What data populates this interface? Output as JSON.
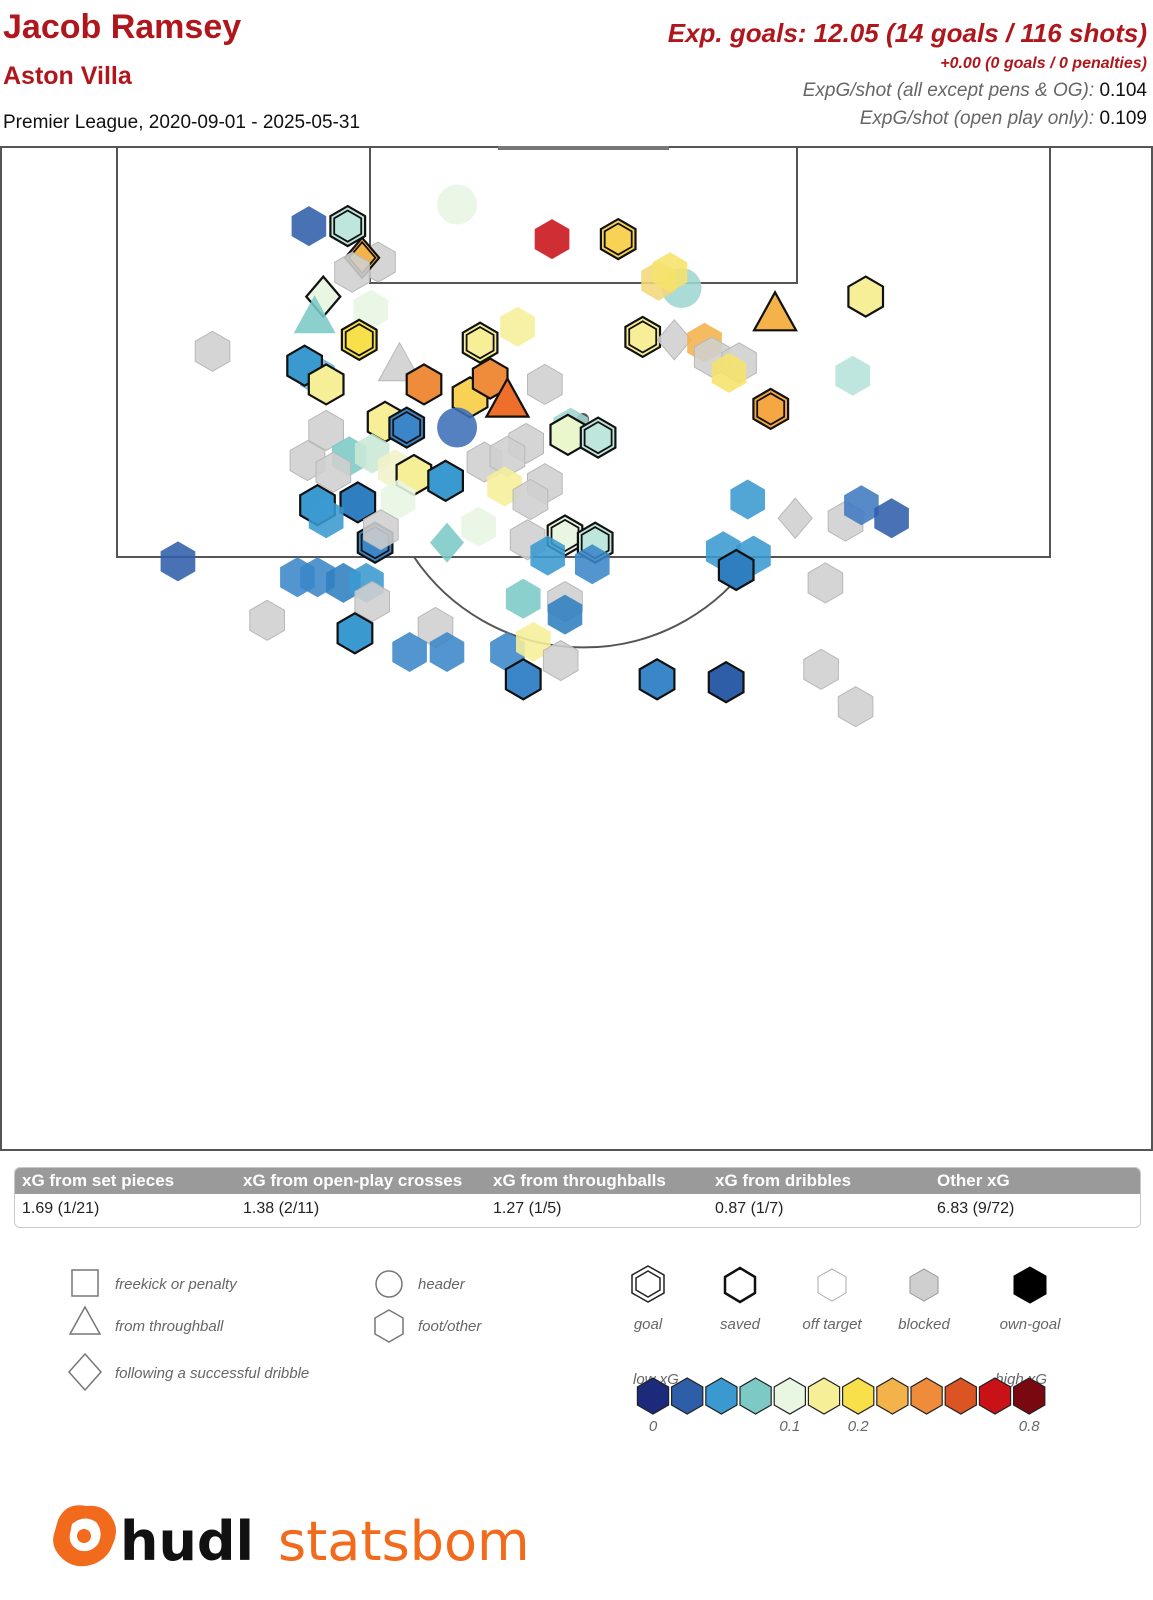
{
  "header": {
    "player": "Jacob Ramsey",
    "team": "Aston Villa",
    "competition": "Premier League, 2020-09-01 - 2025-05-31",
    "xg_main": "Exp. goals: 12.05 (14 goals / 116 shots)",
    "xg_penalties": "+0.00 (0 goals / 0 penalties)",
    "xg_per_shot_label": "ExpG/shot (all except pens & OG):",
    "xg_per_shot_value": "0.104",
    "xg_per_shot_open_label": "ExpG/shot (open play only):",
    "xg_per_shot_open_value": "0.109"
  },
  "categories": [
    {
      "label": "xG from set pieces",
      "value": "1.69 (1/21)"
    },
    {
      "label": "xG from open-play crosses",
      "value": "1.38 (2/11)"
    },
    {
      "label": "xG from throughballs",
      "value": "1.27 (1/5)"
    },
    {
      "label": "xG from dribbles",
      "value": "0.87 (1/7)"
    },
    {
      "label": "Other xG",
      "value": "6.83 (9/72)"
    }
  ],
  "legend": {
    "shapes": [
      {
        "shape": "square",
        "label": "freekick or penalty"
      },
      {
        "shape": "triangle",
        "label": "from throughball"
      },
      {
        "shape": "diamond",
        "label": "following a successful dribble"
      },
      {
        "shape": "circle",
        "label": "header"
      },
      {
        "shape": "hexagon",
        "label": "foot/other"
      }
    ],
    "outcomes": [
      {
        "outcome": "goal",
        "label": "goal"
      },
      {
        "outcome": "saved",
        "label": "saved"
      },
      {
        "outcome": "off",
        "label": "off target"
      },
      {
        "outcome": "blocked",
        "label": "blocked"
      },
      {
        "outcome": "own",
        "label": "own-goal"
      }
    ],
    "scale_low": "low xG",
    "scale_high": "high xG",
    "scale_colors": [
      "#1b2a7a",
      "#2f5ea8",
      "#3a9ad0",
      "#7cc9c6",
      "#e8f6e2",
      "#f6ef98",
      "#f7e04a",
      "#f4b24a",
      "#ee8c3c",
      "#db5424",
      "#c81218",
      "#7a0810"
    ],
    "scale_ticks": [
      {
        "index": 0,
        "text": "0"
      },
      {
        "index": 4,
        "text": "0.1"
      },
      {
        "index": 6,
        "text": "0.2"
      },
      {
        "index": 11,
        "text": "0.8"
      }
    ]
  },
  "colors": {
    "title_red": "#b0171c",
    "blocked_grey": "#cfcfcf",
    "pitch_line": "#555555"
  },
  "logo": {
    "part1": "hudl",
    "part2": "statsbomb"
  },
  "chart_data": {
    "type": "scatter",
    "title": "Jacob Ramsey",
    "xlabel": "",
    "ylabel": "",
    "x_units": "yards from left touchline (0-80)",
    "y_units": "yards from goal line",
    "ylim": [
      0,
      60
    ],
    "points": [
      {
        "x": 21.4,
        "y": 5.5,
        "s": "hex",
        "o": "off",
        "c": "#2f5ea8"
      },
      {
        "x": 24.1,
        "y": 5.5,
        "s": "hex",
        "o": "goal",
        "c": "#bfe6dc"
      },
      {
        "x": 31.7,
        "y": 4.0,
        "s": "circle",
        "o": "off",
        "c": "#e8f6e2"
      },
      {
        "x": 38.3,
        "y": 6.4,
        "s": "hex",
        "o": "off",
        "c": "#c81218"
      },
      {
        "x": 42.9,
        "y": 6.4,
        "s": "hex",
        "o": "goal",
        "c": "#f7d255"
      },
      {
        "x": 26.2,
        "y": 8.0,
        "s": "hex",
        "o": "blocked",
        "c": "#cfcfcf"
      },
      {
        "x": 25.1,
        "y": 7.7,
        "s": "diamond",
        "o": "goal",
        "c": "#f4b24a"
      },
      {
        "x": 24.4,
        "y": 8.7,
        "s": "hex",
        "o": "blocked",
        "c": "#cfcfcf"
      },
      {
        "x": 47.3,
        "y": 9.8,
        "s": "circle",
        "o": "off",
        "c": "#9fd6d0"
      },
      {
        "x": 45.7,
        "y": 9.3,
        "s": "hex",
        "o": "off",
        "c": "#f4d77a"
      },
      {
        "x": 46.5,
        "y": 8.7,
        "s": "hex",
        "o": "off",
        "c": "#f6e36a"
      },
      {
        "x": 53.8,
        "y": 11.7,
        "s": "tri",
        "o": "saved",
        "c": "#f4b24a"
      },
      {
        "x": 60.1,
        "y": 10.4,
        "s": "hex",
        "o": "saved",
        "c": "#f6ef98"
      },
      {
        "x": 22.4,
        "y": 10.4,
        "s": "diamond",
        "o": "saved",
        "c": "#e8f6e2"
      },
      {
        "x": 25.7,
        "y": 11.3,
        "s": "hex",
        "o": "off",
        "c": "#e8f6e2"
      },
      {
        "x": 21.8,
        "y": 11.9,
        "s": "tri",
        "o": "off",
        "c": "#7cc9c6"
      },
      {
        "x": 35.9,
        "y": 12.5,
        "s": "hex",
        "o": "off",
        "c": "#f6ef98"
      },
      {
        "x": 14.7,
        "y": 14.2,
        "s": "hex",
        "o": "blocked",
        "c": "#cfcfcf"
      },
      {
        "x": 24.9,
        "y": 13.4,
        "s": "hex",
        "o": "goal",
        "c": "#f7e04a"
      },
      {
        "x": 33.3,
        "y": 13.6,
        "s": "hex",
        "o": "goal",
        "c": "#f6ef98"
      },
      {
        "x": 44.6,
        "y": 13.2,
        "s": "hex",
        "o": "goal",
        "c": "#f6ef98"
      },
      {
        "x": 46.8,
        "y": 13.4,
        "s": "diamond",
        "o": "blocked",
        "c": "#cfcfcf"
      },
      {
        "x": 48.9,
        "y": 13.6,
        "s": "hex",
        "o": "off",
        "c": "#f4b24a"
      },
      {
        "x": 49.4,
        "y": 14.6,
        "s": "hex",
        "o": "blocked",
        "c": "#cfcfcf"
      },
      {
        "x": 51.3,
        "y": 15.0,
        "s": "hex",
        "o": "blocked",
        "c": "#cfcfcf"
      },
      {
        "x": 50.6,
        "y": 15.7,
        "s": "hex",
        "o": "off",
        "c": "#f6e36a"
      },
      {
        "x": 59.2,
        "y": 15.9,
        "s": "hex",
        "o": "off",
        "c": "#b5e2da"
      },
      {
        "x": 22.0,
        "y": 15.9,
        "s": "hex",
        "o": "off",
        "c": "#6fb3d8"
      },
      {
        "x": 21.1,
        "y": 15.2,
        "s": "hex",
        "o": "saved",
        "c": "#3a9ad0"
      },
      {
        "x": 22.6,
        "y": 16.5,
        "s": "hex",
        "o": "saved",
        "c": "#f6ef98"
      },
      {
        "x": 27.7,
        "y": 15.2,
        "s": "tri",
        "o": "blocked",
        "c": "#cfcfcf"
      },
      {
        "x": 29.4,
        "y": 16.5,
        "s": "hex",
        "o": "saved",
        "c": "#ee8c3c"
      },
      {
        "x": 32.6,
        "y": 17.4,
        "s": "hex",
        "o": "saved",
        "c": "#f7d255"
      },
      {
        "x": 34.0,
        "y": 16.1,
        "s": "hex",
        "o": "saved",
        "c": "#ee8c3c"
      },
      {
        "x": 35.2,
        "y": 17.7,
        "s": "tri",
        "o": "saved",
        "c": "#ee6f2c"
      },
      {
        "x": 37.8,
        "y": 16.5,
        "s": "hex",
        "o": "blocked",
        "c": "#cfcfcf"
      },
      {
        "x": 53.5,
        "y": 18.2,
        "s": "hex",
        "o": "goal",
        "c": "#f4a742"
      },
      {
        "x": 26.7,
        "y": 19.1,
        "s": "hex",
        "o": "saved",
        "c": "#f6ef98"
      },
      {
        "x": 28.2,
        "y": 19.5,
        "s": "hex",
        "o": "goal",
        "c": "#3a86c8"
      },
      {
        "x": 31.7,
        "y": 19.5,
        "s": "circle",
        "o": "off",
        "c": "#3f6fb7"
      },
      {
        "x": 22.6,
        "y": 19.7,
        "s": "hex",
        "o": "blocked",
        "c": "#cfcfcf"
      },
      {
        "x": 39.6,
        "y": 19.5,
        "s": "hex",
        "o": "off",
        "c": "#9fd6d0"
      },
      {
        "x": 39.4,
        "y": 20.0,
        "s": "hex",
        "o": "saved",
        "c": "#eaf6cc"
      },
      {
        "x": 41.5,
        "y": 20.2,
        "s": "hex",
        "o": "goal",
        "c": "#bfe6dc"
      },
      {
        "x": 36.5,
        "y": 20.6,
        "s": "hex",
        "o": "blocked",
        "c": "#cfcfcf"
      },
      {
        "x": 21.3,
        "y": 21.8,
        "s": "hex",
        "o": "blocked",
        "c": "#cfcfcf"
      },
      {
        "x": 24.2,
        "y": 21.5,
        "s": "hex",
        "o": "off",
        "c": "#7cc9c6"
      },
      {
        "x": 25.8,
        "y": 21.3,
        "s": "hex",
        "o": "off",
        "c": "#c9e8d4"
      },
      {
        "x": 23.1,
        "y": 22.6,
        "s": "hex",
        "o": "blocked",
        "c": "#cfcfcf"
      },
      {
        "x": 27.4,
        "y": 22.4,
        "s": "hex",
        "o": "off",
        "c": "#f0f2c8"
      },
      {
        "x": 28.7,
        "y": 22.8,
        "s": "hex",
        "o": "saved",
        "c": "#f6ef98"
      },
      {
        "x": 30.9,
        "y": 23.2,
        "s": "hex",
        "o": "saved",
        "c": "#3a9ad0"
      },
      {
        "x": 33.6,
        "y": 21.9,
        "s": "hex",
        "o": "blocked",
        "c": "#cfcfcf"
      },
      {
        "x": 35.2,
        "y": 21.5,
        "s": "hex",
        "o": "blocked",
        "c": "#cfcfcf"
      },
      {
        "x": 35.0,
        "y": 23.6,
        "s": "hex",
        "o": "off",
        "c": "#f6ef98"
      },
      {
        "x": 37.8,
        "y": 23.4,
        "s": "hex",
        "o": "blocked",
        "c": "#cfcfcf"
      },
      {
        "x": 36.8,
        "y": 24.5,
        "s": "hex",
        "o": "blocked",
        "c": "#cfcfcf"
      },
      {
        "x": 27.6,
        "y": 24.5,
        "s": "hex",
        "o": "off",
        "c": "#e8f6e2"
      },
      {
        "x": 22.0,
        "y": 24.9,
        "s": "hex",
        "o": "saved",
        "c": "#3a9ad0"
      },
      {
        "x": 24.8,
        "y": 24.7,
        "s": "hex",
        "o": "saved",
        "c": "#2f7fc0"
      },
      {
        "x": 22.6,
        "y": 25.8,
        "s": "hex",
        "o": "off",
        "c": "#3a9ad0"
      },
      {
        "x": 51.9,
        "y": 24.5,
        "s": "hex",
        "o": "off",
        "c": "#3a9ad0"
      },
      {
        "x": 55.2,
        "y": 25.8,
        "s": "diamond",
        "o": "blocked",
        "c": "#cfcfcf"
      },
      {
        "x": 58.7,
        "y": 26.0,
        "s": "hex",
        "o": "blocked",
        "c": "#cfcfcf"
      },
      {
        "x": 59.8,
        "y": 24.9,
        "s": "hex",
        "o": "off",
        "c": "#3f7ac0"
      },
      {
        "x": 61.9,
        "y": 25.8,
        "s": "hex",
        "o": "off",
        "c": "#2f5ea8"
      },
      {
        "x": 33.2,
        "y": 26.4,
        "s": "hex",
        "o": "off",
        "c": "#e8f6e2"
      },
      {
        "x": 26.0,
        "y": 27.5,
        "s": "hex",
        "o": "goal",
        "c": "#3a86c8"
      },
      {
        "x": 26.4,
        "y": 26.6,
        "s": "hex",
        "o": "blocked",
        "c": "#cfcfcf"
      },
      {
        "x": 31.0,
        "y": 27.5,
        "s": "diamond",
        "o": "off",
        "c": "#7cc9c6"
      },
      {
        "x": 39.2,
        "y": 27.0,
        "s": "hex",
        "o": "goal",
        "c": "#e8f6e2"
      },
      {
        "x": 41.3,
        "y": 27.5,
        "s": "hex",
        "o": "goal",
        "c": "#bfe6dc"
      },
      {
        "x": 36.6,
        "y": 27.3,
        "s": "hex",
        "o": "blocked",
        "c": "#cfcfcf"
      },
      {
        "x": 38.0,
        "y": 28.4,
        "s": "hex",
        "o": "off",
        "c": "#3a9ad0"
      },
      {
        "x": 41.1,
        "y": 29.0,
        "s": "hex",
        "o": "off",
        "c": "#3a86c8"
      },
      {
        "x": 50.2,
        "y": 28.1,
        "s": "hex",
        "o": "off",
        "c": "#3a9ad0"
      },
      {
        "x": 52.3,
        "y": 28.4,
        "s": "hex",
        "o": "off",
        "c": "#3a9ad0"
      },
      {
        "x": 51.1,
        "y": 29.4,
        "s": "hex",
        "o": "saved",
        "c": "#2f7fc0"
      },
      {
        "x": 57.3,
        "y": 30.3,
        "s": "hex",
        "o": "blocked",
        "c": "#cfcfcf"
      },
      {
        "x": 12.3,
        "y": 28.8,
        "s": "hex",
        "o": "off",
        "c": "#2f5ea8"
      },
      {
        "x": 20.6,
        "y": 29.9,
        "s": "hex",
        "o": "off",
        "c": "#3a86c8"
      },
      {
        "x": 22.0,
        "y": 29.9,
        "s": "hex",
        "o": "off",
        "c": "#3a86c8"
      },
      {
        "x": 23.8,
        "y": 30.3,
        "s": "hex",
        "o": "off",
        "c": "#2f7fc0"
      },
      {
        "x": 25.4,
        "y": 30.3,
        "s": "hex",
        "o": "off",
        "c": "#3a9ad0"
      },
      {
        "x": 25.8,
        "y": 31.6,
        "s": "hex",
        "o": "blocked",
        "c": "#cfcfcf"
      },
      {
        "x": 36.3,
        "y": 31.4,
        "s": "hex",
        "o": "off",
        "c": "#7cc9c6"
      },
      {
        "x": 39.2,
        "y": 31.6,
        "s": "hex",
        "o": "blocked",
        "c": "#cfcfcf"
      },
      {
        "x": 39.2,
        "y": 32.5,
        "s": "hex",
        "o": "off",
        "c": "#2f7fc0"
      },
      {
        "x": 18.5,
        "y": 32.9,
        "s": "hex",
        "o": "blocked",
        "c": "#cfcfcf"
      },
      {
        "x": 24.6,
        "y": 33.8,
        "s": "hex",
        "o": "saved",
        "c": "#3a9ad0"
      },
      {
        "x": 30.2,
        "y": 33.4,
        "s": "hex",
        "o": "blocked",
        "c": "#cfcfcf"
      },
      {
        "x": 28.4,
        "y": 35.1,
        "s": "hex",
        "o": "off",
        "c": "#3a86c8"
      },
      {
        "x": 31.0,
        "y": 35.1,
        "s": "hex",
        "o": "off",
        "c": "#3a86c8"
      },
      {
        "x": 35.2,
        "y": 35.1,
        "s": "hex",
        "o": "off",
        "c": "#3a86c8"
      },
      {
        "x": 37.0,
        "y": 34.4,
        "s": "hex",
        "o": "off",
        "c": "#f6ef98"
      },
      {
        "x": 38.9,
        "y": 35.7,
        "s": "hex",
        "o": "blocked",
        "c": "#cfcfcf"
      },
      {
        "x": 36.3,
        "y": 37.0,
        "s": "hex",
        "o": "saved",
        "c": "#3a86c8"
      },
      {
        "x": 45.6,
        "y": 37.0,
        "s": "hex",
        "o": "saved",
        "c": "#3a86c8"
      },
      {
        "x": 50.4,
        "y": 37.2,
        "s": "hex",
        "o": "saved",
        "c": "#2f5ea8"
      },
      {
        "x": 57.0,
        "y": 36.3,
        "s": "hex",
        "o": "blocked",
        "c": "#cfcfcf"
      },
      {
        "x": 59.4,
        "y": 38.9,
        "s": "hex",
        "o": "blocked",
        "c": "#cfcfcf"
      }
    ]
  }
}
